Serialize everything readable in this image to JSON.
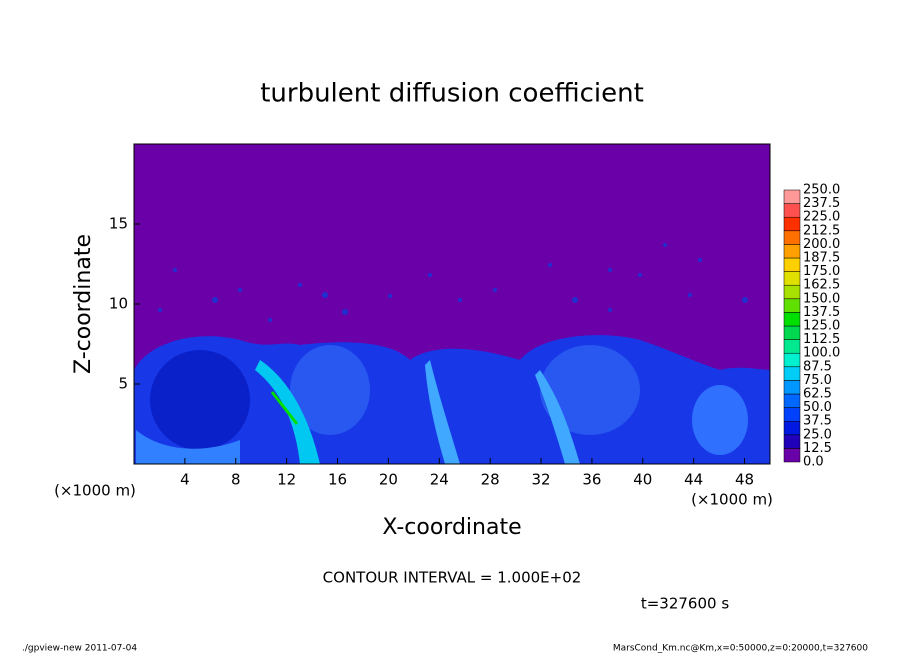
{
  "chart_data": {
    "type": "contour",
    "title": "turbulent diffusion coefficient",
    "xlabel": "X-coordinate",
    "ylabel": "Z-coordinate",
    "x_unit": "(×1000 m)",
    "xlim": [
      0,
      50
    ],
    "ylim": [
      0,
      20
    ],
    "xticks": [
      4,
      8,
      12,
      16,
      20,
      24,
      28,
      32,
      36,
      40,
      44,
      48
    ],
    "yticks": [
      5,
      10,
      15
    ],
    "levels": [
      {
        "value": 0,
        "label": "0.0"
      },
      {
        "value": 12.5,
        "label": "12.5"
      },
      {
        "value": 25,
        "label": "25.0"
      },
      {
        "value": 37.5,
        "label": "37.5"
      },
      {
        "value": 50,
        "label": "50.0"
      },
      {
        "value": 62.5,
        "label": "62.5"
      },
      {
        "value": 75,
        "label": "75.0"
      },
      {
        "value": 87.5,
        "label": "87.5"
      },
      {
        "value": 100,
        "label": "100.0"
      },
      {
        "value": 112.5,
        "label": "112.5"
      },
      {
        "value": 125,
        "label": "125.0"
      },
      {
        "value": 137.5,
        "label": "137.5"
      },
      {
        "value": 150,
        "label": "150.0"
      },
      {
        "value": 162.5,
        "label": "162.5"
      },
      {
        "value": 175,
        "label": "175.0"
      },
      {
        "value": 187.5,
        "label": "187.5"
      },
      {
        "value": 200,
        "label": "200.0"
      },
      {
        "value": 212.5,
        "label": "212.5"
      },
      {
        "value": 225,
        "label": "225.0"
      },
      {
        "value": 237.5,
        "label": "237.5"
      },
      {
        "value": 250,
        "label": "250.0"
      }
    ],
    "colors": [
      "#6a00a8",
      "#2000b8",
      "#0018e0",
      "#0040ff",
      "#0068ff",
      "#0098ff",
      "#00ccf8",
      "#00f0d0",
      "#00e890",
      "#00d850",
      "#00e000",
      "#60e000",
      "#a8e000",
      "#e0e000",
      "#ffd000",
      "#ffa000",
      "#ff7000",
      "#ff3000",
      "#ff5050",
      "#ff9898"
    ],
    "contour_interval": "CONTOUR INTERVAL = 1.000E+02",
    "time": "t=327600 s",
    "footer_left": "./gpview-new  2011-07-04",
    "footer_right": "MarsCond_Km.nc@Km,x=0:50000,z=0:20000,t=327600"
  }
}
